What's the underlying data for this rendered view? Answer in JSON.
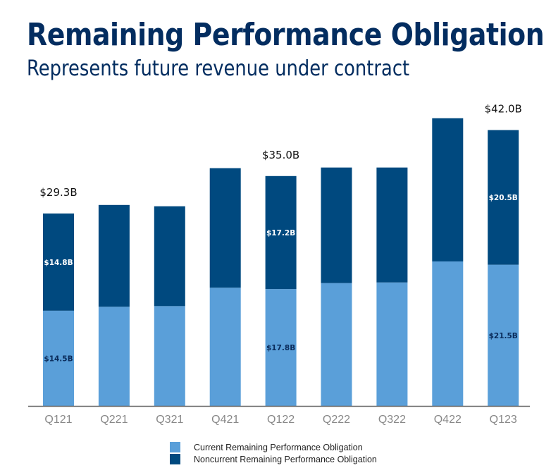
{
  "colors": {
    "current": "#5a9fd9",
    "noncurrent": "#00497f",
    "title": "#032d60",
    "axis": "#666666",
    "tick": "#888888"
  },
  "chart_data": {
    "type": "bar",
    "stacked": true,
    "title": "Remaining Performance Obligation",
    "subtitle": "Represents future revenue under contract",
    "xlabel": "",
    "ylabel": "",
    "ylim": [
      0,
      45
    ],
    "grid": false,
    "legend_position": "bottom",
    "categories": [
      "Q121",
      "Q221",
      "Q321",
      "Q421",
      "Q122",
      "Q222",
      "Q322",
      "Q422",
      "Q123"
    ],
    "series": [
      {
        "name": "Current Remaining Performance Obligation",
        "values": [
          14.5,
          15.1,
          15.2,
          18.0,
          17.8,
          18.7,
          18.8,
          22.0,
          21.5
        ]
      },
      {
        "name": "Noncurrent Remaining Performance Obligation",
        "values": [
          14.8,
          15.5,
          15.2,
          18.2,
          17.2,
          17.6,
          17.5,
          21.8,
          20.5
        ]
      }
    ],
    "total_labels": [
      {
        "index": 0,
        "text": "$29.3B"
      },
      {
        "index": 4,
        "text": "$35.0B"
      },
      {
        "index": 8,
        "text": "$42.0B"
      }
    ],
    "segment_labels": [
      {
        "index": 0,
        "series": 0,
        "text": "$14.5B"
      },
      {
        "index": 0,
        "series": 1,
        "text": "$14.8B"
      },
      {
        "index": 4,
        "series": 0,
        "text": "$17.8B"
      },
      {
        "index": 4,
        "series": 1,
        "text": "$17.2B"
      },
      {
        "index": 8,
        "series": 0,
        "text": "$21.5B"
      },
      {
        "index": 8,
        "series": 1,
        "text": "$20.5B"
      }
    ]
  }
}
